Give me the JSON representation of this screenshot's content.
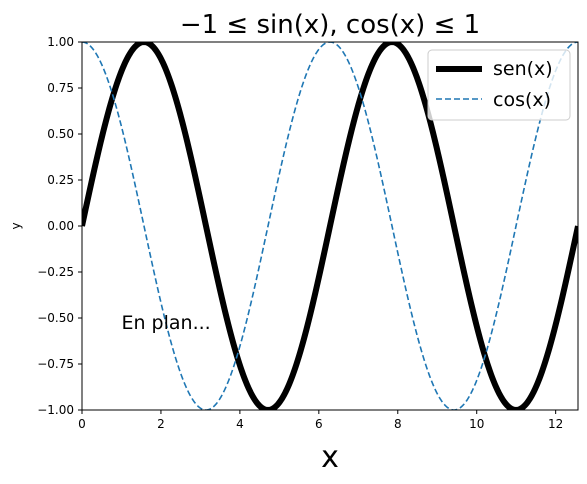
{
  "chart_data": {
    "type": "line",
    "title": "−1 ≤ sin(x), cos(x) ≤ 1",
    "xlabel": "x",
    "ylabel": "y",
    "xlim": [
      0,
      12.566
    ],
    "ylim": [
      -1,
      1
    ],
    "grid": false,
    "legend_position": "top-right",
    "xticks": [
      0,
      2,
      4,
      6,
      8,
      10,
      12
    ],
    "xtick_labels": [
      "0",
      "2",
      "4",
      "6",
      "8",
      "10",
      "12"
    ],
    "yticks": [
      1,
      0.75,
      0.5,
      0.25,
      0,
      -0.25,
      -0.5,
      -0.75,
      -1
    ],
    "ytick_labels": [
      "1.00",
      "0.75",
      "0.50",
      "0.25",
      "0.00",
      "−0.25",
      "−0.50",
      "−0.75",
      "−1.00"
    ],
    "series": [
      {
        "name": "sen(x)",
        "function": "sin",
        "color": "#000000",
        "linestyle": "solid",
        "x": [
          0,
          0.524,
          1.047,
          1.571,
          2.094,
          2.618,
          3.142,
          3.665,
          4.189,
          4.712,
          5.236,
          5.76,
          6.283,
          6.807,
          7.33,
          7.854,
          8.378,
          8.901,
          9.425,
          9.948,
          10.472,
          10.996,
          11.519,
          12.043,
          12.566
        ],
        "values": [
          0,
          0.5,
          0.866,
          1,
          0.866,
          0.5,
          0,
          -0.5,
          -0.866,
          -1,
          -0.866,
          -0.5,
          0,
          0.5,
          0.866,
          1,
          0.866,
          0.5,
          0,
          -0.5,
          -0.866,
          -1,
          -0.866,
          -0.5,
          0
        ]
      },
      {
        "name": "cos(x)",
        "function": "cos",
        "color": "#1f77b4",
        "linestyle": "dashed",
        "x": [
          0,
          0.524,
          1.047,
          1.571,
          2.094,
          2.618,
          3.142,
          3.665,
          4.189,
          4.712,
          5.236,
          5.76,
          6.283,
          6.807,
          7.33,
          7.854,
          8.378,
          8.901,
          9.425,
          9.948,
          10.472,
          10.996,
          11.519,
          12.043,
          12.566
        ],
        "values": [
          1,
          0.866,
          0.5,
          0,
          -0.5,
          -0.866,
          -1,
          -0.866,
          -0.5,
          0,
          0.5,
          0.866,
          1,
          0.866,
          0.5,
          0,
          -0.5,
          -0.866,
          -1,
          -0.866,
          -0.5,
          0,
          0.5,
          0.866,
          1
        ]
      }
    ],
    "annotations": [
      {
        "text": "En plan...",
        "x": 1,
        "y": -0.56
      }
    ]
  }
}
